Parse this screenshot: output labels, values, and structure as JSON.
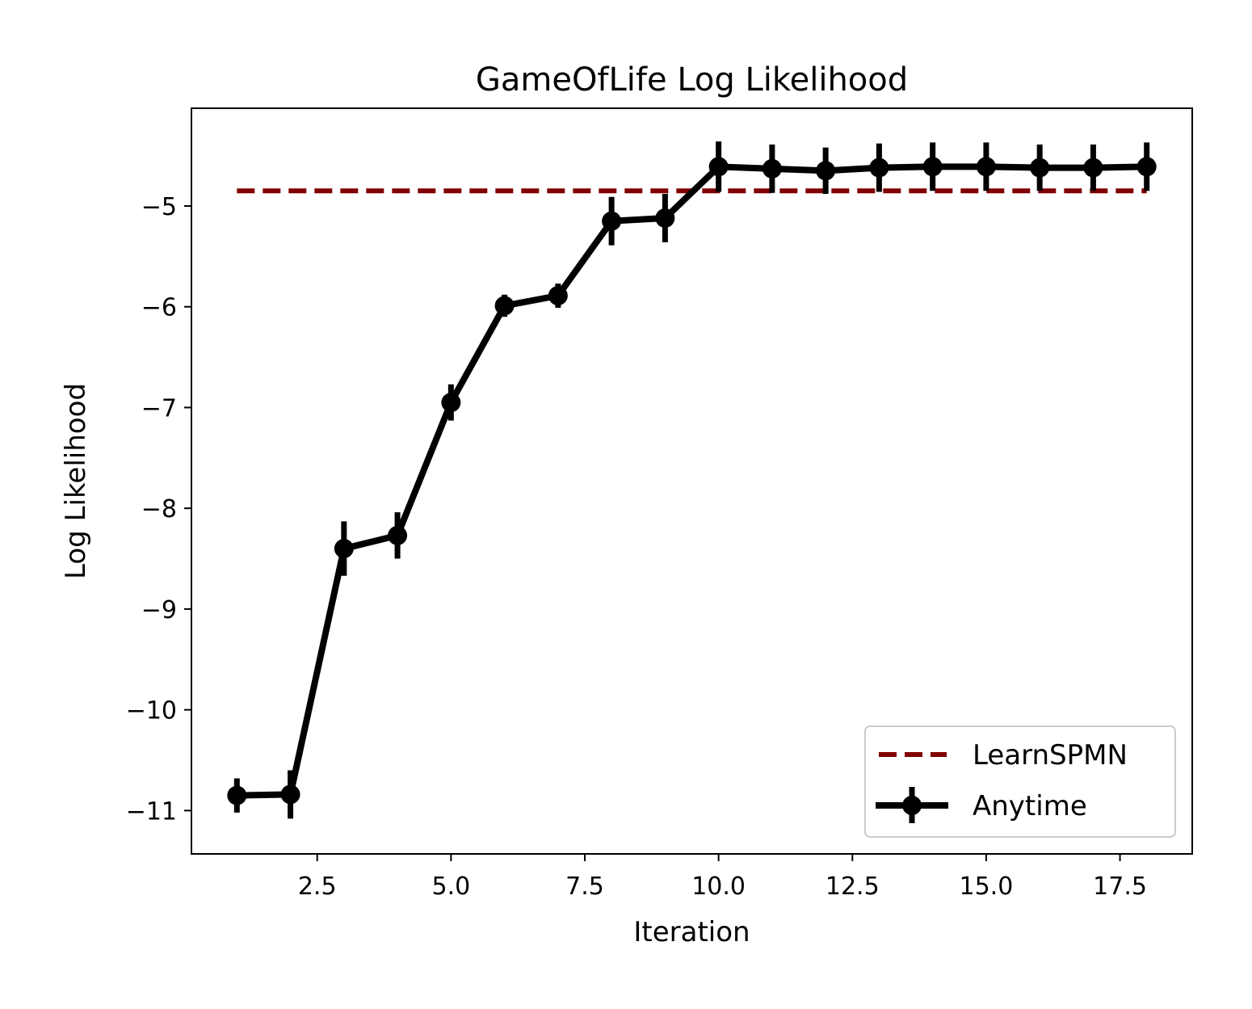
{
  "chart_data": {
    "type": "line",
    "title": "GameOfLife Log Likelihood",
    "xlabel": "Iteration",
    "ylabel": "Log Likelihood",
    "xlim": [
      0.15,
      18.85
    ],
    "ylim": [
      -11.43,
      -4.03
    ],
    "xticks": [
      2.5,
      5.0,
      7.5,
      10.0,
      12.5,
      15.0,
      17.5
    ],
    "xtick_labels": [
      "2.5",
      "5.0",
      "7.5",
      "10.0",
      "12.5",
      "15.0",
      "17.5"
    ],
    "yticks": [
      -11,
      -10,
      -9,
      -8,
      -7,
      -6,
      -5
    ],
    "ytick_labels": [
      "−11",
      "−10",
      "−9",
      "−8",
      "−7",
      "−6",
      "−5"
    ],
    "grid": false,
    "legend_position": "lower right",
    "series": [
      {
        "name": "LearnSPMN",
        "style": "dashed",
        "color": "#800000",
        "x": [
          1,
          18
        ],
        "y": [
          -4.85,
          -4.85
        ]
      },
      {
        "name": "Anytime",
        "style": "solid-errorbar",
        "color": "#000000",
        "x": [
          1,
          2,
          3,
          4,
          5,
          6,
          7,
          8,
          9,
          10,
          11,
          12,
          13,
          14,
          15,
          16,
          17,
          18
        ],
        "y": [
          -10.85,
          -10.84,
          -8.4,
          -8.27,
          -6.95,
          -5.99,
          -5.89,
          -5.15,
          -5.12,
          -4.61,
          -4.63,
          -4.65,
          -4.62,
          -4.61,
          -4.61,
          -4.62,
          -4.62,
          -4.61
        ],
        "yerr": [
          0.17,
          0.24,
          0.27,
          0.23,
          0.18,
          0.11,
          0.12,
          0.24,
          0.24,
          0.25,
          0.24,
          0.23,
          0.24,
          0.24,
          0.24,
          0.23,
          0.23,
          0.24
        ]
      }
    ]
  }
}
